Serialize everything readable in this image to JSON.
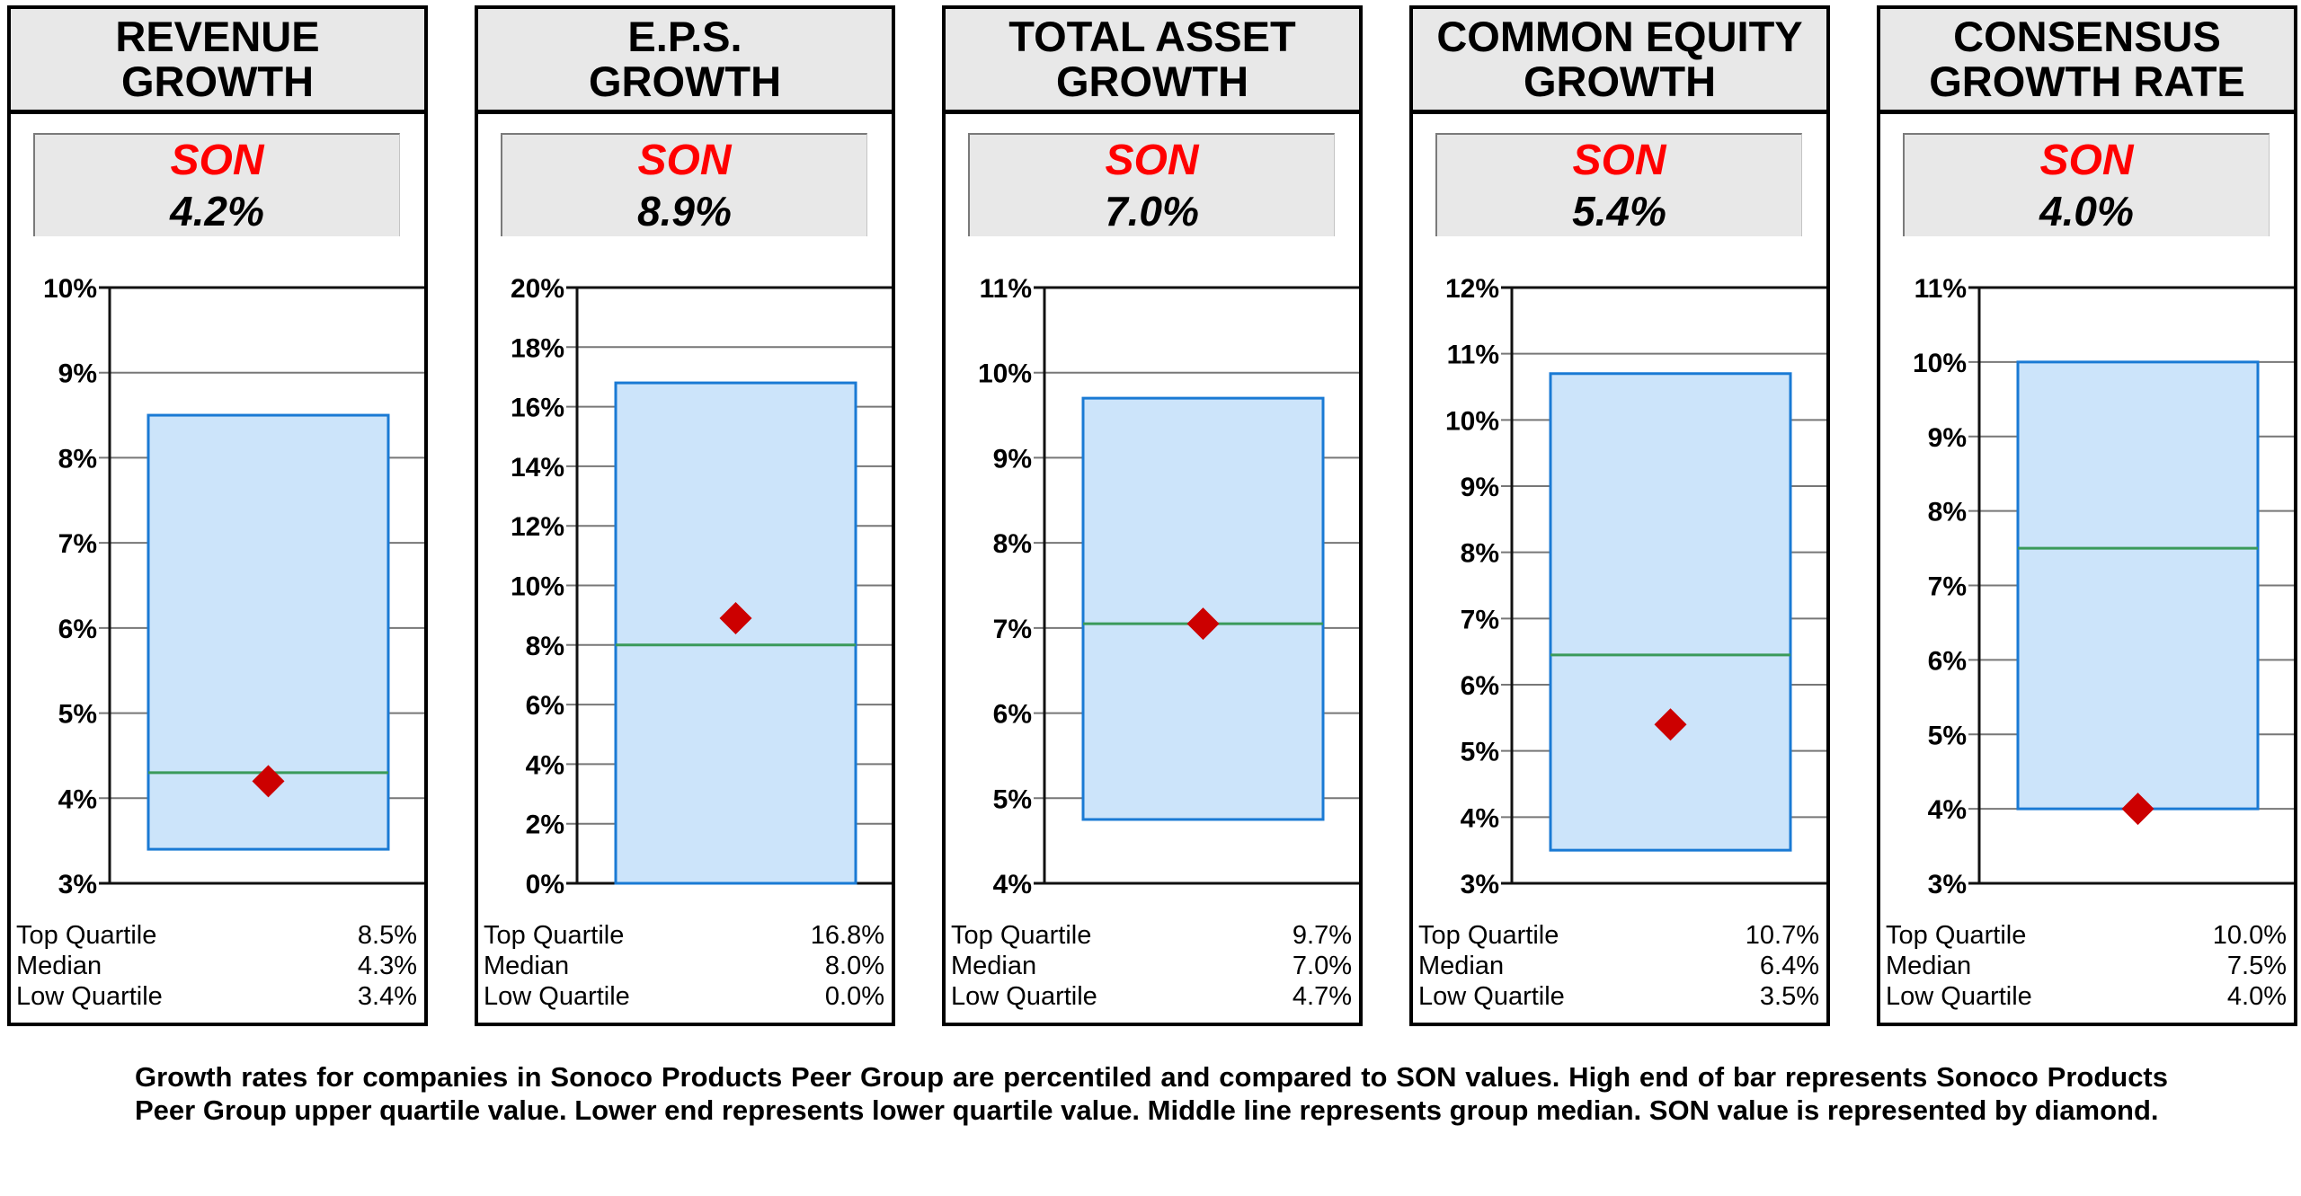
{
  "panels": [
    {
      "title_lines": [
        "REVENUE",
        "GROWTH"
      ],
      "son_label": "SON",
      "son_value_text": "4.2%",
      "stats": [
        {
          "label": "Top Quartile",
          "value": "8.5%"
        },
        {
          "label": "Median",
          "value": "4.3%"
        },
        {
          "label": "Low Quartile",
          "value": "3.4%"
        }
      ]
    },
    {
      "title_lines": [
        "E.P.S.",
        "GROWTH"
      ],
      "son_label": "SON",
      "son_value_text": "8.9%",
      "stats": [
        {
          "label": "Top Quartile",
          "value": "16.8%"
        },
        {
          "label": "Median",
          "value": "8.0%"
        },
        {
          "label": "Low Quartile",
          "value": "0.0%"
        }
      ]
    },
    {
      "title_lines": [
        "TOTAL ASSET",
        "GROWTH"
      ],
      "son_label": "SON",
      "son_value_text": "7.0%",
      "stats": [
        {
          "label": "Top Quartile",
          "value": "9.7%"
        },
        {
          "label": "Median",
          "value": "7.0%"
        },
        {
          "label": "Low Quartile",
          "value": "4.7%"
        }
      ]
    },
    {
      "title_lines": [
        "COMMON EQUITY",
        "GROWTH"
      ],
      "son_label": "SON",
      "son_value_text": "5.4%",
      "stats": [
        {
          "label": "Top Quartile",
          "value": "10.7%"
        },
        {
          "label": "Median",
          "value": "6.4%"
        },
        {
          "label": "Low Quartile",
          "value": "3.5%"
        }
      ]
    },
    {
      "title_lines": [
        "CONSENSUS",
        "GROWTH RATE"
      ],
      "son_label": "SON",
      "son_value_text": "4.0%",
      "stats": [
        {
          "label": "Top Quartile",
          "value": "10.0%"
        },
        {
          "label": "Median",
          "value": "7.5%"
        },
        {
          "label": "Low Quartile",
          "value": "4.0%"
        }
      ]
    }
  ],
  "footnote": "Growth rates for companies in Sonoco Products Peer Group are percentiled and compared to SON values.  High end of bar represents Sonoco Products Peer Group upper quartile value.  Lower end represents lower quartile value.  Middle line represents group median.  SON value is represented by diamond.",
  "colors": {
    "son_label": "#ff0000",
    "bar_fill": "#cce4fa",
    "bar_outline": "#1a7ad4",
    "median_line": "#3a9a5a",
    "diamond": "#cc0000",
    "header_bg": "#e8e8e8"
  },
  "chart_data": [
    {
      "type": "bar",
      "title": "REVENUE GROWTH",
      "ylim": [
        3,
        10
      ],
      "ytick_step": 1,
      "yticks": [
        "3%",
        "4%",
        "5%",
        "6%",
        "7%",
        "8%",
        "9%",
        "10%"
      ],
      "top_quartile": 8.5,
      "median": 4.3,
      "low_quartile": 3.4,
      "son": 4.2,
      "grid": true
    },
    {
      "type": "bar",
      "title": "E.P.S. GROWTH",
      "ylim": [
        0,
        20
      ],
      "ytick_step": 2,
      "yticks": [
        "0%",
        "2%",
        "4%",
        "6%",
        "8%",
        "10%",
        "12%",
        "14%",
        "16%",
        "18%",
        "20%"
      ],
      "top_quartile": 16.8,
      "median": 8.0,
      "low_quartile": 0.0,
      "son": 8.9,
      "grid": true
    },
    {
      "type": "bar",
      "title": "TOTAL ASSET GROWTH",
      "ylim": [
        4,
        11
      ],
      "ytick_step": 1,
      "yticks": [
        "4%",
        "5%",
        "6%",
        "7%",
        "8%",
        "9%",
        "10%",
        "11%"
      ],
      "top_quartile": 9.7,
      "median": 7.05,
      "low_quartile": 4.75,
      "son": 7.05,
      "grid": true
    },
    {
      "type": "bar",
      "title": "COMMON EQUITY GROWTH",
      "ylim": [
        3,
        12
      ],
      "ytick_step": 1,
      "yticks": [
        "3%",
        "4%",
        "5%",
        "6%",
        "7%",
        "8%",
        "9%",
        "10%",
        "11%",
        "12%"
      ],
      "top_quartile": 10.7,
      "median": 6.45,
      "low_quartile": 3.5,
      "son": 5.4,
      "grid": true
    },
    {
      "type": "bar",
      "title": "CONSENSUS GROWTH RATE",
      "ylim": [
        3,
        11
      ],
      "ytick_step": 1,
      "yticks": [
        "3%",
        "4%",
        "5%",
        "6%",
        "7%",
        "8%",
        "9%",
        "10%",
        "11%"
      ],
      "top_quartile": 10.0,
      "median": 7.5,
      "low_quartile": 4.0,
      "son": 4.0,
      "grid": true
    }
  ]
}
